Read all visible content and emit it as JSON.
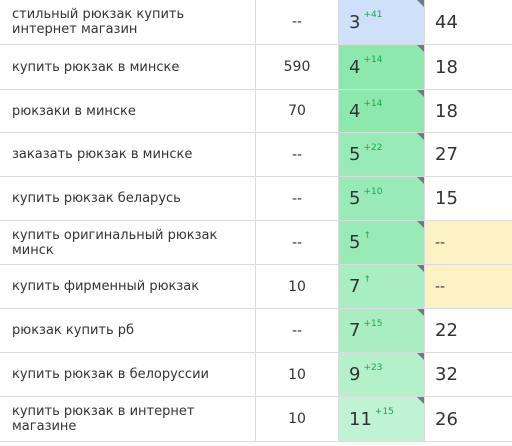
{
  "colors": {
    "blue": "#cfe0fb",
    "green_strong": "#8de8ae",
    "green_mid": "#a4edc0",
    "green_light": "#bff3d3",
    "yellow": "#fdf2c3"
  },
  "rows": [
    {
      "keyword": "стильный рюкзак купить интернет магазин",
      "volume": "--",
      "position": "3",
      "delta": "+41",
      "last": "44",
      "pos_color": "#cfe0fb",
      "last_color": "#ffffff"
    },
    {
      "keyword": "купить рюкзак в минске",
      "volume": "590",
      "position": "4",
      "delta": "+14",
      "last": "18",
      "pos_color": "#8de8ae",
      "last_color": "#ffffff"
    },
    {
      "keyword": "рюкзаки в минске",
      "volume": "70",
      "position": "4",
      "delta": "+14",
      "last": "18",
      "pos_color": "#8de8ae",
      "last_color": "#ffffff"
    },
    {
      "keyword": "заказать рюкзак в минске",
      "volume": "--",
      "position": "5",
      "delta": "+22",
      "last": "27",
      "pos_color": "#98eab6",
      "last_color": "#ffffff"
    },
    {
      "keyword": "купить рюкзак беларусь",
      "volume": "--",
      "position": "5",
      "delta": "+10",
      "last": "15",
      "pos_color": "#98eab6",
      "last_color": "#ffffff"
    },
    {
      "keyword": "купить оригинальный рюкзак минск",
      "volume": "--",
      "position": "5",
      "delta": "↑",
      "last": "--",
      "pos_color": "#98eab6",
      "last_color": "#fdf2c3"
    },
    {
      "keyword": "купить фирменный рюкзак",
      "volume": "10",
      "position": "7",
      "delta": "↑",
      "last": "--",
      "pos_color": "#a8eec2",
      "last_color": "#fdf2c3"
    },
    {
      "keyword": "рюкзак купить рб",
      "volume": "--",
      "position": "7",
      "delta": "+15",
      "last": "22",
      "pos_color": "#a8eec2",
      "last_color": "#ffffff"
    },
    {
      "keyword": "купить рюкзак в белоруссии",
      "volume": "10",
      "position": "9",
      "delta": "+23",
      "last": "32",
      "pos_color": "#b4f0ca",
      "last_color": "#ffffff"
    },
    {
      "keyword": "купить рюкзак в интернет магазине",
      "volume": "10",
      "position": "11",
      "delta": "+15",
      "last": "26",
      "pos_color": "#bff3d3",
      "last_color": "#ffffff"
    }
  ]
}
